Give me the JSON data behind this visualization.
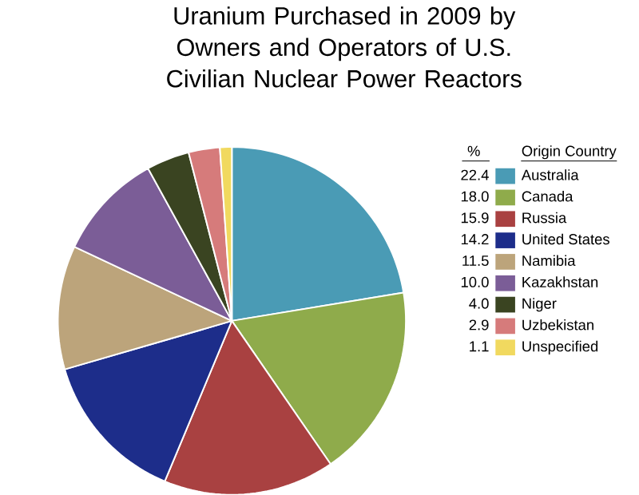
{
  "chart_data": {
    "type": "pie",
    "title": "Uranium Purchased in 2009 by Owners and Operators of U.S. Civilian Nuclear Power Reactors",
    "legend_title": "Origin Country",
    "annotations": [
      "%"
    ],
    "legend": "right",
    "categories": [
      "Australia",
      "Canada",
      "Russia",
      "United States",
      "Namibia",
      "Kazakhstan",
      "Niger",
      "Uzbekistan",
      "Unspecified"
    ],
    "values": [
      22.4,
      18.0,
      15.9,
      14.2,
      11.5,
      10.0,
      4.0,
      2.9,
      1.1
    ],
    "value_labels": [
      "22.4",
      "18.0",
      "15.9",
      "14.2",
      "11.5",
      "10.0",
      "4.0",
      "2.9",
      "1.1"
    ],
    "colors": [
      "#4a9bb5",
      "#8fab4b",
      "#a94141",
      "#1d2d8a",
      "#bca47b",
      "#7b5d97",
      "#3a4421",
      "#d67b7b",
      "#f1d95f"
    ]
  }
}
